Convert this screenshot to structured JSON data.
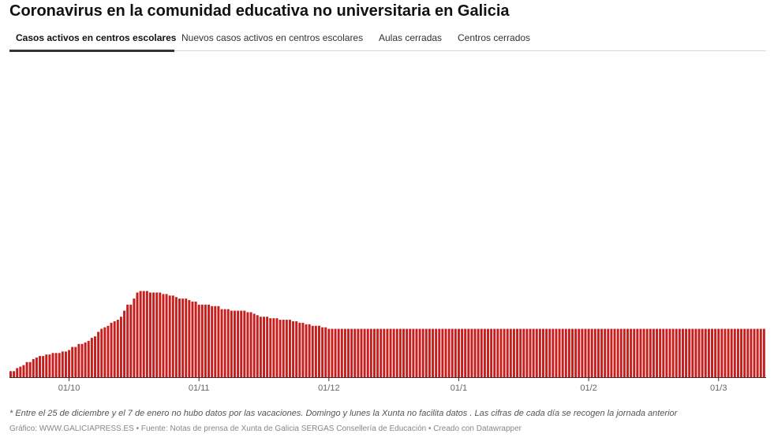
{
  "title": "Coronavirus en la comunidad educativa no universitaria en Galicia",
  "tabs": [
    {
      "label": "Casos activos en centros escolares",
      "active": true
    },
    {
      "label": "Nuevos casos activos en centros escolares",
      "active": false
    },
    {
      "label": "Aulas cerradas",
      "active": false
    },
    {
      "label": "Centros cerrados",
      "active": false
    }
  ],
  "footnote": "* Entre el 25 de diciembre y el 7 de enero no hubo datos por las vacaciones. Domingo y lunes la Xunta no facilita datos . Las cifras de cada día se recogen la jornada anterior",
  "source": "Gráfico: WWW.GALICIAPRESS.ES • Fuente: Notas de prensa de Xunta de Galicia SERGAS Consellería de Educación • Creado con Datawrapper",
  "colors": {
    "bar": "#c71e1d",
    "axis": "#333333",
    "tick_text": "#666666"
  },
  "chart_data": {
    "type": "bar",
    "title": "Coronavirus en la comunidad educativa no universitaria en Galicia",
    "series_name": "Casos activos en centros escolares",
    "xlabel": "",
    "ylabel": "",
    "ylim": [
      0,
      1000
    ],
    "grid": false,
    "x_ticks": [
      {
        "label": "01/10",
        "index": 18
      },
      {
        "label": "01/11",
        "index": 58
      },
      {
        "label": "01/12",
        "index": 98
      },
      {
        "label": "01/1",
        "index": 138
      },
      {
        "label": "01/2",
        "index": 178
      },
      {
        "label": "01/3",
        "index": 218
      }
    ],
    "values": [
      20,
      20,
      30,
      35,
      40,
      50,
      50,
      60,
      65,
      70,
      70,
      75,
      75,
      80,
      80,
      80,
      85,
      85,
      90,
      100,
      100,
      110,
      110,
      115,
      120,
      130,
      135,
      150,
      160,
      165,
      170,
      180,
      185,
      190,
      200,
      220,
      240,
      240,
      260,
      280,
      285,
      285,
      285,
      280,
      280,
      280,
      280,
      275,
      275,
      270,
      270,
      265,
      260,
      260,
      260,
      255,
      250,
      250,
      240,
      240,
      240,
      240,
      235,
      235,
      235,
      225,
      225,
      225,
      220,
      220,
      220,
      220,
      220,
      215,
      215,
      210,
      205,
      200,
      200,
      200,
      195,
      195,
      195,
      190,
      190,
      190,
      190,
      185,
      185,
      180,
      180,
      175,
      175,
      170,
      170,
      170,
      165,
      165,
      160,
      160,
      160,
      160,
      160,
      160,
      160,
      160,
      160,
      160,
      160,
      160,
      160,
      160,
      160,
      160,
      160,
      160,
      160,
      160,
      160,
      160,
      160,
      160,
      160,
      160,
      160,
      160,
      160,
      160,
      160,
      160,
      160,
      160,
      160,
      160,
      160,
      160,
      160,
      160,
      160,
      160,
      160,
      160,
      160,
      160,
      160,
      160,
      160,
      160,
      160,
      160,
      160,
      160,
      160,
      160,
      160,
      160,
      160,
      160,
      160,
      160,
      160,
      160,
      160,
      160,
      160,
      160,
      160,
      160,
      160,
      160,
      160,
      160,
      160,
      160,
      160,
      160,
      160,
      160,
      160,
      160,
      160,
      160,
      160,
      160,
      160,
      160,
      160,
      160,
      160,
      160,
      160,
      160,
      160,
      160,
      160,
      160,
      160,
      160,
      160,
      160,
      160,
      160,
      160,
      160,
      160,
      160,
      160,
      160,
      160,
      160,
      160,
      160,
      160,
      160,
      160,
      160,
      160,
      160,
      160,
      160,
      160,
      160,
      160,
      160,
      160,
      160,
      160,
      160,
      160,
      160,
      160,
      160,
      160
    ]
  }
}
